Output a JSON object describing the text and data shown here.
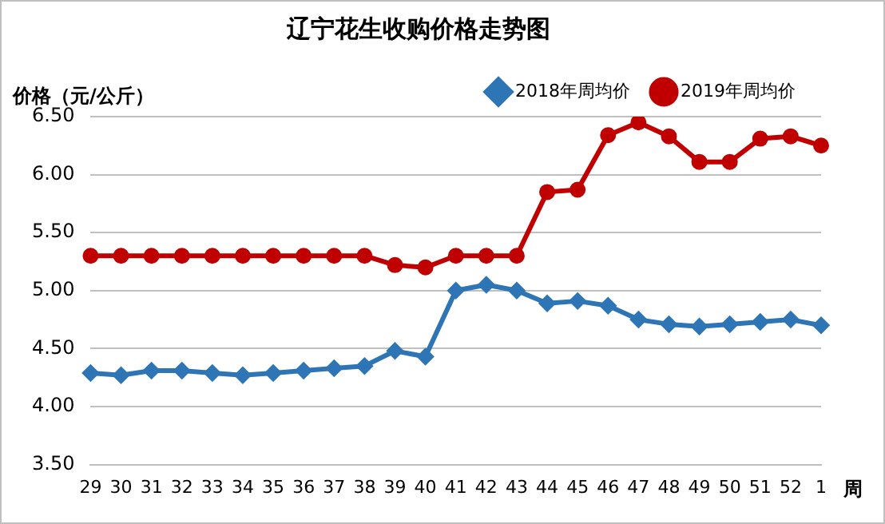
{
  "chart_data": {
    "type": "line",
    "title": "辽宁花生收购价格走势图",
    "ylabel": "价格（元/公斤）",
    "xlabel": "周",
    "categories": [
      "29",
      "30",
      "31",
      "32",
      "33",
      "34",
      "35",
      "36",
      "37",
      "38",
      "39",
      "40",
      "41",
      "42",
      "43",
      "44",
      "45",
      "46",
      "47",
      "48",
      "49",
      "50",
      "51",
      "52",
      "1"
    ],
    "series": [
      {
        "name": "2018年周均价",
        "color": "#2e75b6",
        "marker": "diamond",
        "values": [
          4.29,
          4.27,
          4.31,
          4.31,
          4.29,
          4.27,
          4.29,
          4.31,
          4.33,
          4.35,
          4.48,
          4.43,
          5.0,
          5.05,
          5.0,
          4.89,
          4.91,
          4.87,
          4.75,
          4.71,
          4.69,
          4.71,
          4.73,
          4.75,
          4.7
        ]
      },
      {
        "name": "2019年周均价",
        "color": "#c00000",
        "marker": "circle",
        "values": [
          5.3,
          5.3,
          5.3,
          5.3,
          5.3,
          5.3,
          5.3,
          5.3,
          5.3,
          5.3,
          5.22,
          5.2,
          5.3,
          5.3,
          5.3,
          5.85,
          5.87,
          6.34,
          6.45,
          6.33,
          6.11,
          6.11,
          6.31,
          6.33,
          6.25
        ]
      }
    ],
    "ylim": [
      3.5,
      6.5
    ],
    "yticks": [
      {
        "value": 3.5,
        "label": "3.50"
      },
      {
        "value": 4,
        "label": "4.00"
      },
      {
        "value": 4.5,
        "label": "4.50"
      },
      {
        "value": 5,
        "label": "5.00"
      },
      {
        "value": 5.5,
        "label": "5.50"
      },
      {
        "value": 6,
        "label": "6.00"
      },
      {
        "value": 6.5,
        "label": "6.50"
      }
    ],
    "grid": "y",
    "legend": "top right",
    "line_style": "solid"
  }
}
